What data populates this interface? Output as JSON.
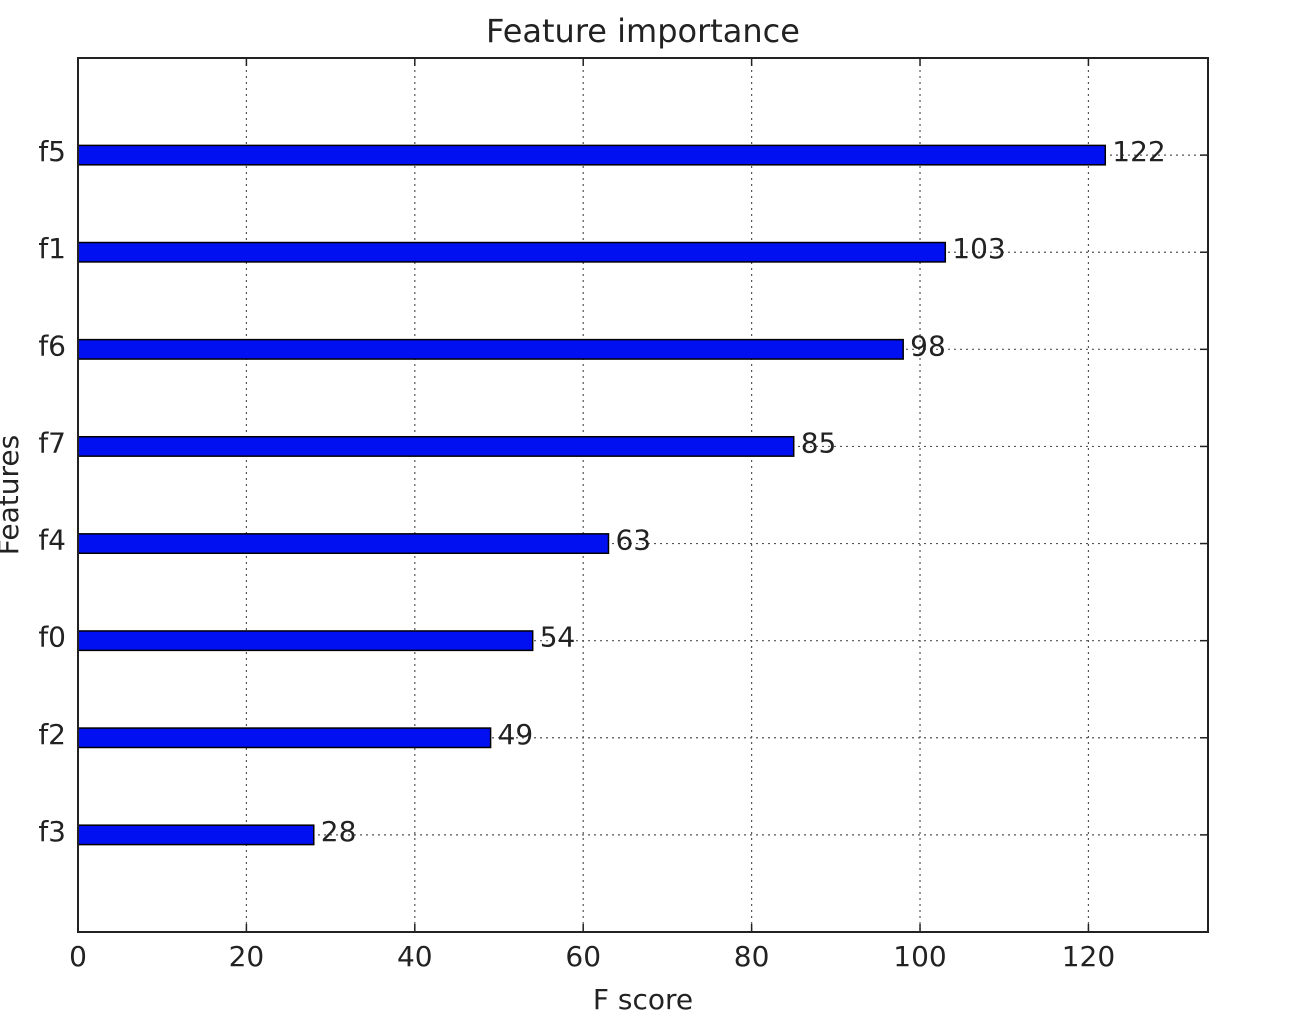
{
  "chart_data": {
    "type": "barh",
    "title": "Feature importance",
    "xlabel": "F score",
    "ylabel": "Features",
    "categories": [
      "f3",
      "f2",
      "f0",
      "f4",
      "f7",
      "f6",
      "f1",
      "f5"
    ],
    "values": [
      28,
      49,
      54,
      63,
      85,
      98,
      103,
      122
    ],
    "color": "#0010f0",
    "xlim": [
      0,
      134.2
    ],
    "xticks": [
      0,
      20,
      40,
      60,
      80,
      100,
      120
    ],
    "grid": true
  }
}
